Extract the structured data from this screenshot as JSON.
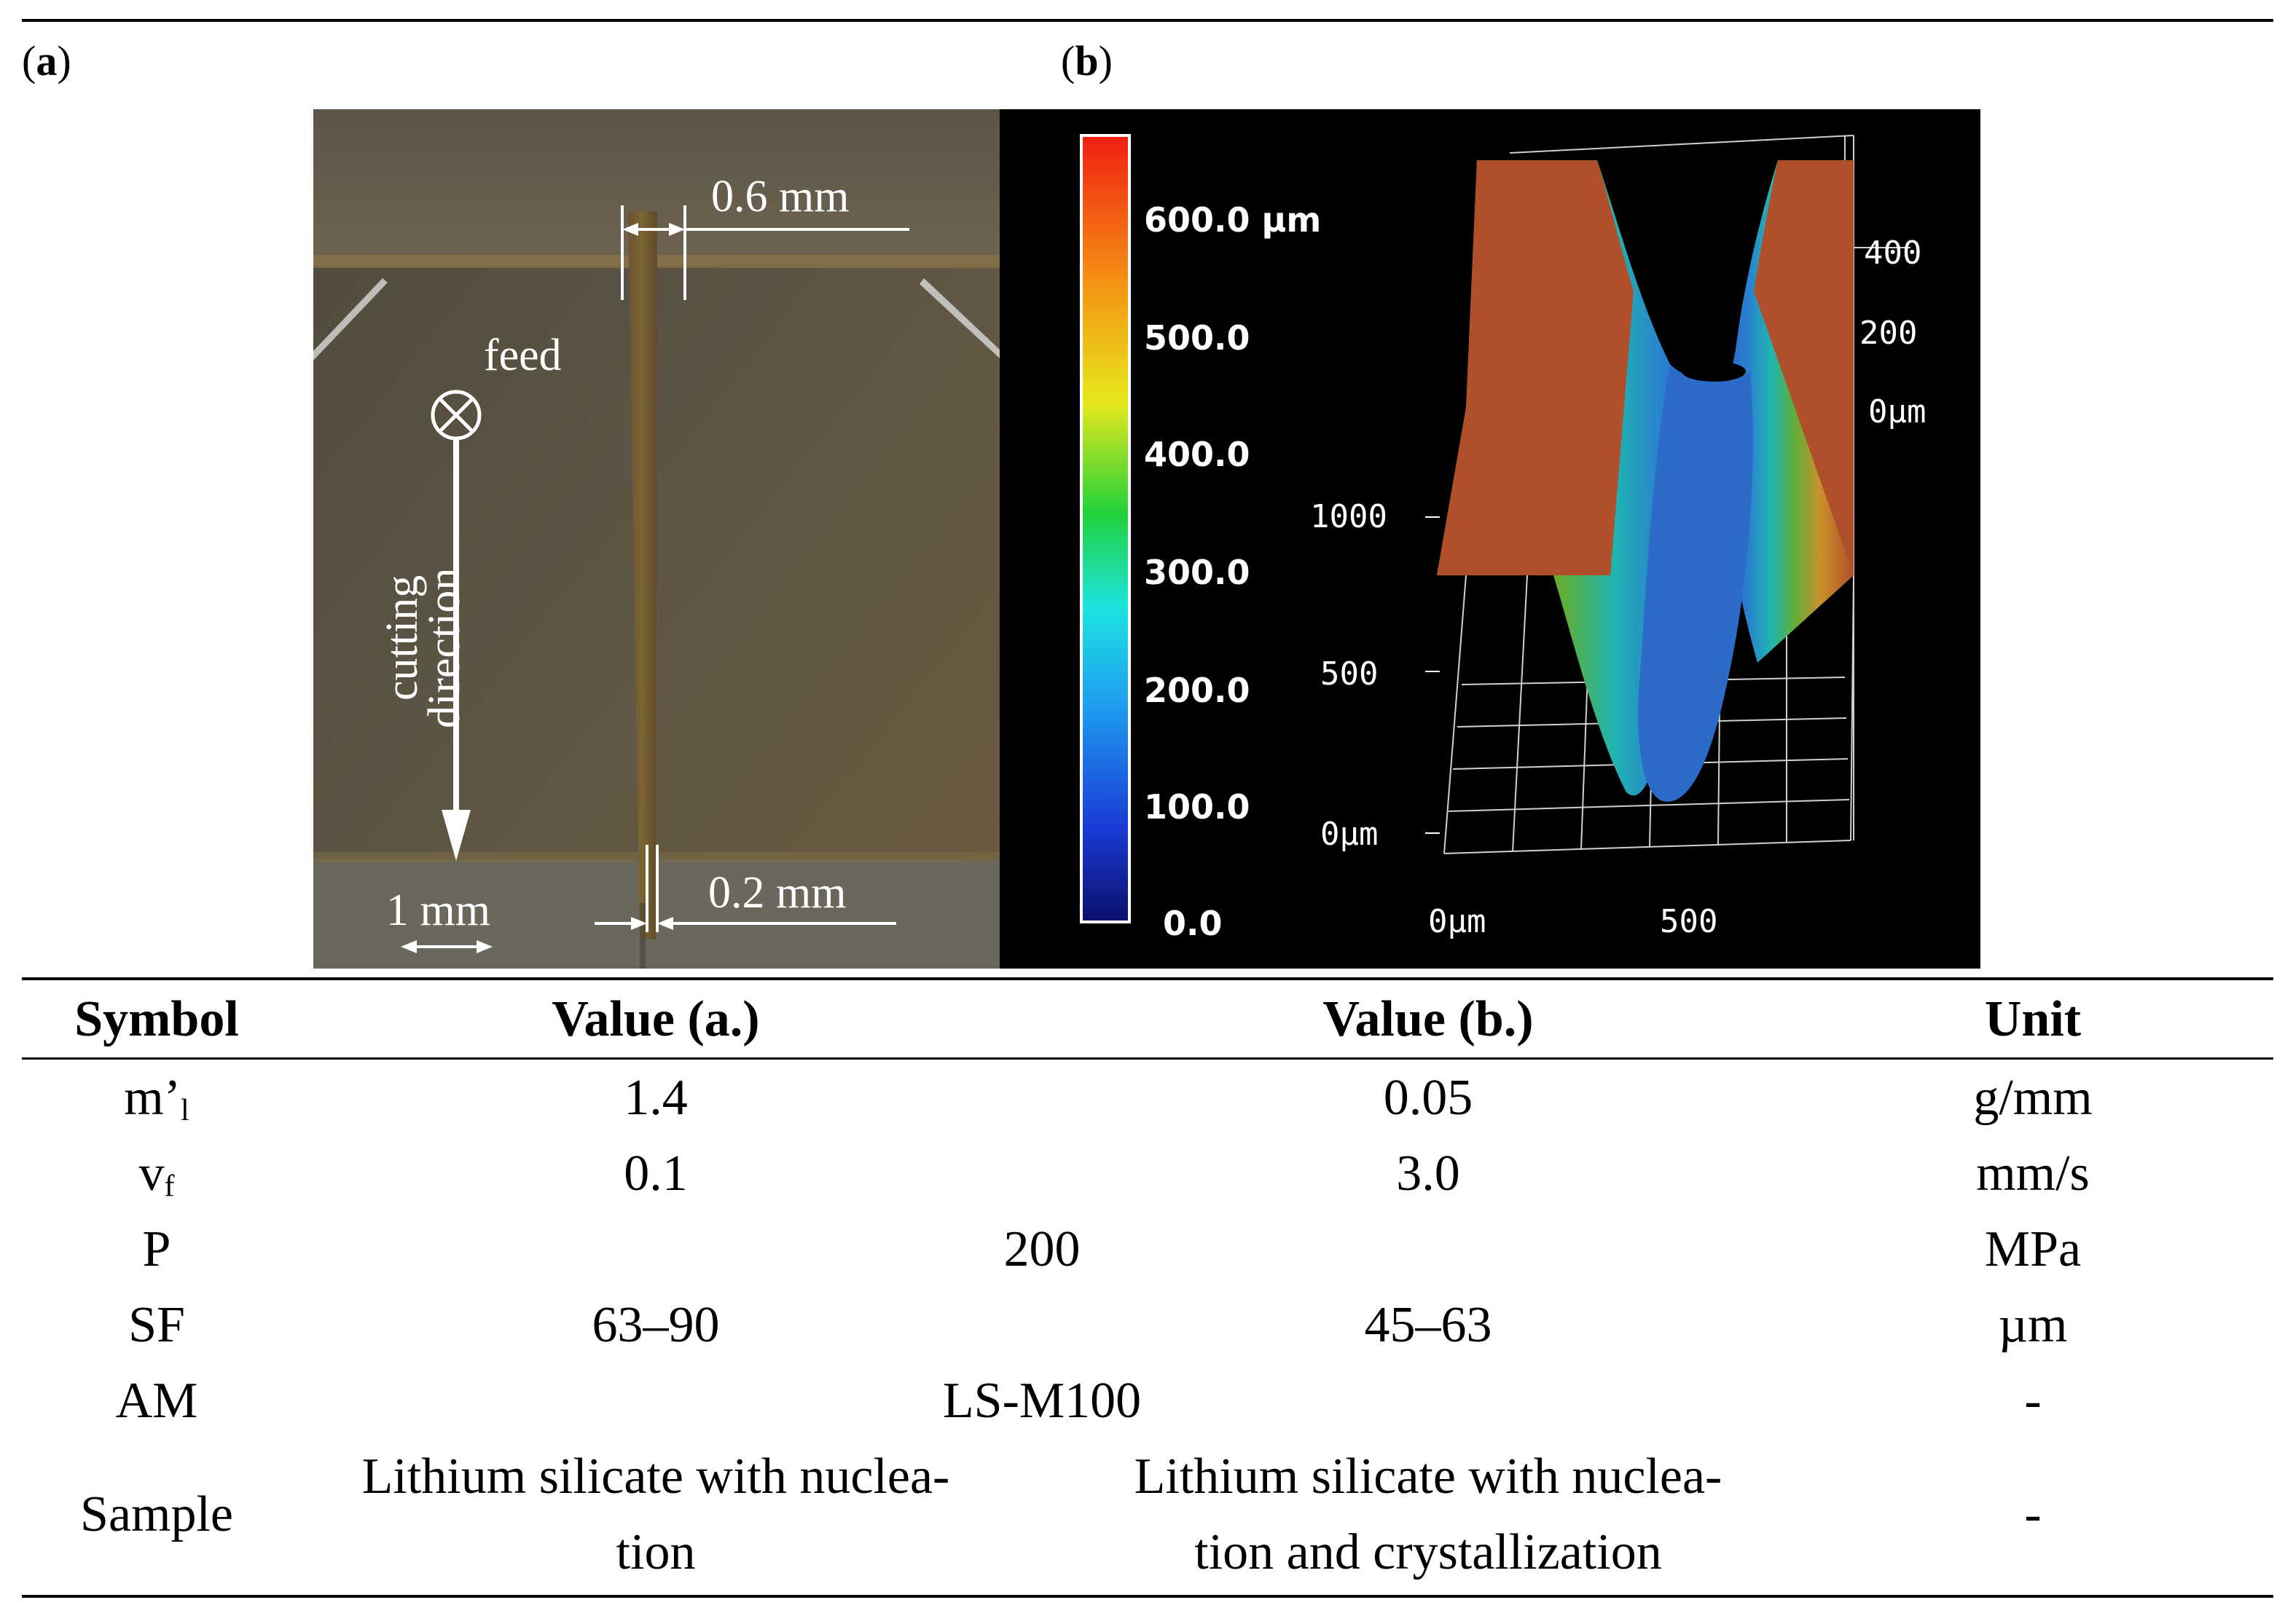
{
  "panel_a": {
    "label": "a",
    "dim_top": "0.6 mm",
    "feed": "feed",
    "cutting_direction_line1": "cutting",
    "cutting_direction_line2": "direction",
    "scale": "1 mm",
    "dim_bottom": "0.2 mm"
  },
  "panel_b": {
    "label": "b",
    "colorbar_ticks": [
      "600.0 µm",
      "500.0",
      "400.0",
      "300.0",
      "200.0",
      "100.0",
      "0.0"
    ],
    "z_ticks": [
      "400",
      "200",
      "0µm"
    ],
    "y_ticks": [
      "1000",
      "500",
      "0µm"
    ],
    "x_ticks": [
      "0µm",
      "500"
    ]
  },
  "table": {
    "headers": [
      "Symbol",
      "Value (a.)",
      "Value (b.)",
      "Unit"
    ],
    "rows": [
      {
        "symbol": "m’",
        "symbol_sub": "l",
        "a": "1.4",
        "b": "0.05",
        "unit": "g/mm"
      },
      {
        "symbol": "v",
        "symbol_sub": "f",
        "a": "0.1",
        "b": "3.0",
        "unit": "mm/s"
      },
      {
        "symbol": "P",
        "merged": "200",
        "unit": "MPa"
      },
      {
        "symbol": "SF",
        "a": "63–90",
        "b": "45–63",
        "unit": "µm"
      },
      {
        "symbol": "AM",
        "merged": "LS-M100",
        "unit": "-"
      },
      {
        "symbol": "Sample",
        "a_line1": "Lithium silicate with nuclea-",
        "a_line2": "tion",
        "b_line1": "Lithium silicate with nuclea-",
        "b_line2": "tion and crystallization",
        "unit": "-"
      }
    ]
  }
}
